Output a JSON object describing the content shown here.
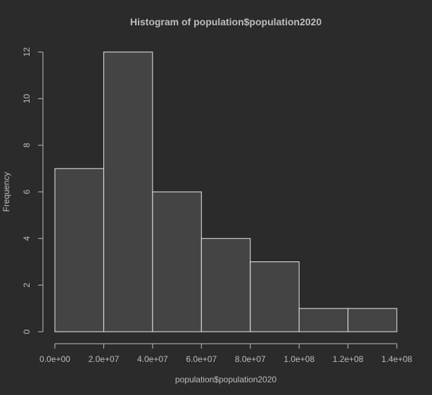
{
  "chart_data": {
    "type": "bar",
    "title": "Histogram of population$population2020",
    "xlabel": "population$population2020",
    "ylabel": "Frequency",
    "bins": [
      {
        "start": 0,
        "end": 20000000,
        "count": 7
      },
      {
        "start": 20000000,
        "end": 40000000,
        "count": 12
      },
      {
        "start": 40000000,
        "end": 60000000,
        "count": 6
      },
      {
        "start": 60000000,
        "end": 80000000,
        "count": 4
      },
      {
        "start": 80000000,
        "end": 100000000,
        "count": 3
      },
      {
        "start": 100000000,
        "end": 120000000,
        "count": 1
      },
      {
        "start": 120000000,
        "end": 140000000,
        "count": 1
      }
    ],
    "xlim": [
      0,
      140000000
    ],
    "ylim": [
      0,
      12
    ],
    "x_ticks": [
      {
        "value": 0,
        "label": "0.0e+00"
      },
      {
        "value": 20000000,
        "label": "2.0e+07"
      },
      {
        "value": 40000000,
        "label": "4.0e+07"
      },
      {
        "value": 60000000,
        "label": "6.0e+07"
      },
      {
        "value": 80000000,
        "label": "8.0e+07"
      },
      {
        "value": 100000000,
        "label": "1.0e+08"
      },
      {
        "value": 120000000,
        "label": "1.2e+08"
      },
      {
        "value": 140000000,
        "label": "1.4e+08"
      }
    ],
    "y_ticks": [
      {
        "value": 0,
        "label": "0"
      },
      {
        "value": 2,
        "label": "2"
      },
      {
        "value": 4,
        "label": "4"
      },
      {
        "value": 6,
        "label": "6"
      },
      {
        "value": 8,
        "label": "8"
      },
      {
        "value": 10,
        "label": "10"
      },
      {
        "value": 12,
        "label": "12"
      }
    ],
    "grid": false,
    "colors": {
      "background": "#2b2b2b",
      "bar_fill": "#444444",
      "bar_border": "#e8e8e8",
      "text": "#bdbdbd"
    }
  }
}
